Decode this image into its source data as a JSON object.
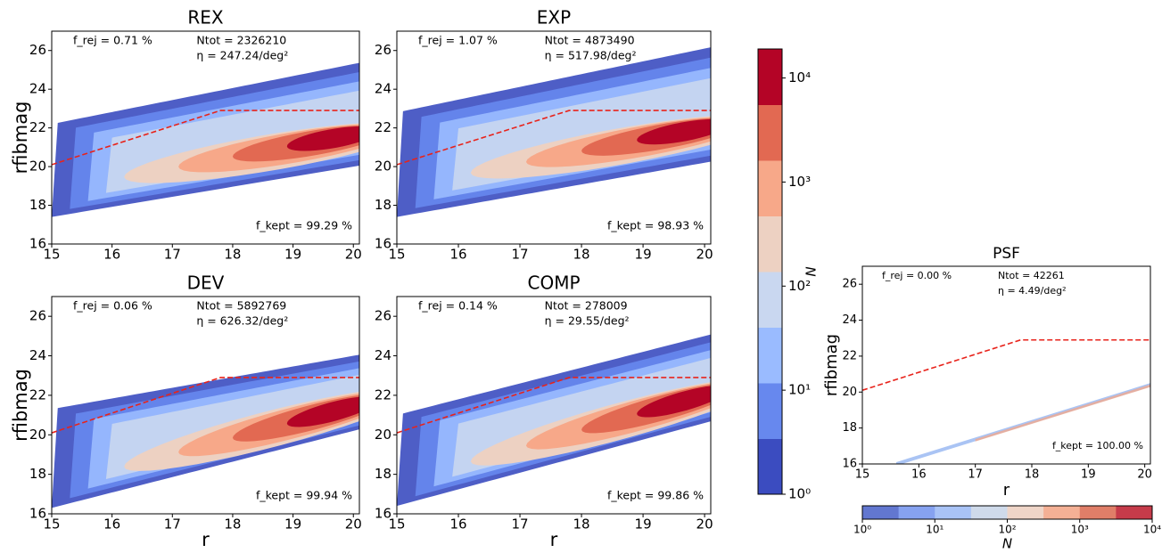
{
  "chart_data": [
    {
      "type": "hexbin",
      "title": "REX",
      "ylabel": "rfibmag",
      "xlim": [
        15,
        20.1
      ],
      "ylim": [
        16,
        27
      ],
      "xticks": [
        15,
        16,
        17,
        18,
        19,
        20
      ],
      "yticks": [
        16,
        18,
        20,
        22,
        24,
        26
      ],
      "f_rej": "f_rej = 0.71 %",
      "ntot": "Ntot = 2326210",
      "eta": "η = 247.24/deg²",
      "f_kept": "f_kept = 99.29 %",
      "cut_line": {
        "x": [
          15,
          17.8,
          20.1
        ],
        "y": [
          20.1,
          22.9,
          22.9
        ],
        "color": "#e8231b"
      }
    },
    {
      "type": "hexbin",
      "title": "EXP",
      "xlim": [
        15,
        20.1
      ],
      "ylim": [
        16,
        27
      ],
      "xticks": [
        15,
        16,
        17,
        18,
        19,
        20
      ],
      "yticks": [
        16,
        18,
        20,
        22,
        24,
        26
      ],
      "f_rej": "f_rej = 1.07 %",
      "ntot": "Ntot = 4873490",
      "eta": "η = 517.98/deg²",
      "f_kept": "f_kept = 98.93 %",
      "cut_line": {
        "x": [
          15,
          17.8,
          20.1
        ],
        "y": [
          20.1,
          22.9,
          22.9
        ],
        "color": "#e8231b"
      }
    },
    {
      "type": "hexbin",
      "title": "DEV",
      "ylabel": "rfibmag",
      "xlabel": "r",
      "xlim": [
        15,
        20.1
      ],
      "ylim": [
        16,
        27
      ],
      "xticks": [
        15,
        16,
        17,
        18,
        19,
        20
      ],
      "yticks": [
        16,
        18,
        20,
        22,
        24,
        26
      ],
      "f_rej": "f_rej = 0.06 %",
      "ntot": "Ntot = 5892769",
      "eta": "η = 626.32/deg²",
      "f_kept": "f_kept = 99.94 %",
      "cut_line": {
        "x": [
          15,
          17.8,
          20.1
        ],
        "y": [
          20.1,
          22.9,
          22.9
        ],
        "color": "#e8231b"
      }
    },
    {
      "type": "hexbin",
      "title": "COMP",
      "xlabel": "r",
      "xlim": [
        15,
        20.1
      ],
      "ylim": [
        16,
        27
      ],
      "xticks": [
        15,
        16,
        17,
        18,
        19,
        20
      ],
      "yticks": [
        16,
        18,
        20,
        22,
        24,
        26
      ],
      "f_rej": "f_rej = 0.14 %",
      "ntot": "Ntot = 278009",
      "eta": "η = 29.55/deg²",
      "f_kept": "f_kept = 99.86 %",
      "cut_line": {
        "x": [
          15,
          17.8,
          20.1
        ],
        "y": [
          20.1,
          22.9,
          22.9
        ],
        "color": "#e8231b"
      }
    },
    {
      "type": "hexbin",
      "title": "PSF",
      "ylabel": "rfibmag",
      "xlabel": "r",
      "xlim": [
        15,
        20.1
      ],
      "ylim": [
        16,
        27
      ],
      "xticks": [
        15,
        16,
        17,
        18,
        19,
        20
      ],
      "yticks": [
        16,
        18,
        20,
        22,
        24,
        26
      ],
      "f_rej": "f_rej = 0.00 %",
      "ntot": "Ntot = 42261",
      "eta": "η = 4.49/deg²",
      "f_kept": "f_kept = 100.00 %",
      "cut_line": {
        "x": [
          15,
          17.8,
          20.1
        ],
        "y": [
          20.1,
          22.9,
          22.9
        ],
        "color": "#e8231b"
      }
    },
    {
      "type": "colorbar",
      "orientation": "vertical",
      "label": "N",
      "log": true,
      "lim": [
        1,
        19000
      ],
      "colors": [
        "#3b4cc0",
        "#6788ee",
        "#9abbff",
        "#c9d7f0",
        "#edd1c2",
        "#f7a889",
        "#e26952",
        "#b40426"
      ],
      "ticks": [
        {
          "value": 1,
          "label": "10⁰"
        },
        {
          "value": 10,
          "label": "10¹"
        },
        {
          "value": 100,
          "label": "10²"
        },
        {
          "value": 1000,
          "label": "10³"
        },
        {
          "value": 10000,
          "label": "10⁴"
        }
      ]
    },
    {
      "type": "colorbar",
      "orientation": "horizontal",
      "label": "N",
      "log": true,
      "lim": [
        1,
        10000
      ],
      "colors": [
        "#6277d0",
        "#86a2f0",
        "#a9c3f6",
        "#cfdaea",
        "#efd5c8",
        "#f4b095",
        "#e07e68",
        "#c63b4a"
      ],
      "ticks": [
        {
          "value": 1,
          "label": "10⁰"
        },
        {
          "value": 10,
          "label": "10¹"
        },
        {
          "value": 100,
          "label": "10²"
        },
        {
          "value": 1000,
          "label": "10³"
        },
        {
          "value": 10000,
          "label": "10⁴"
        }
      ]
    }
  ]
}
